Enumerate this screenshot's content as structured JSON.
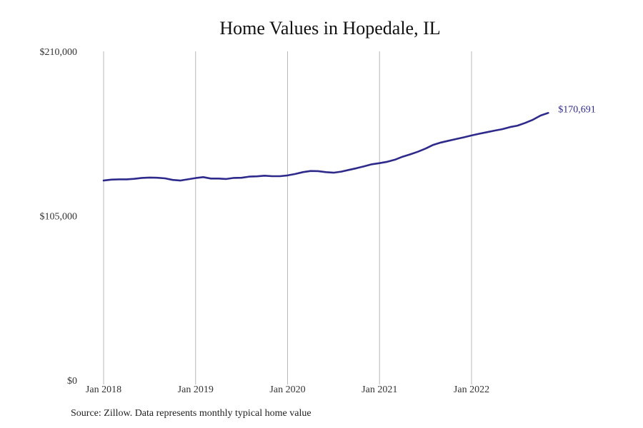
{
  "chart_data": {
    "type": "line",
    "title": "Home Values in Hopedale, IL",
    "xlabel": "",
    "ylabel": "",
    "ylim": [
      0,
      210000
    ],
    "y_ticks": [
      {
        "value": 0,
        "label": "$0"
      },
      {
        "value": 105000,
        "label": "$105,000"
      },
      {
        "value": 210000,
        "label": "$210,000"
      }
    ],
    "x_ticks": [
      {
        "date": "2018-01",
        "label": "Jan 2018"
      },
      {
        "date": "2019-01",
        "label": "Jan 2019"
      },
      {
        "date": "2020-01",
        "label": "Jan 2020"
      },
      {
        "date": "2021-01",
        "label": "Jan 2021"
      },
      {
        "date": "2022-01",
        "label": "Jan 2022"
      }
    ],
    "grid": "vertical",
    "series": [
      {
        "color": "#2e2a8c",
        "end_label": "$170,691",
        "x": [
          "2018-01",
          "2018-02",
          "2018-03",
          "2018-04",
          "2018-05",
          "2018-06",
          "2018-07",
          "2018-08",
          "2018-09",
          "2018-10",
          "2018-11",
          "2018-12",
          "2019-01",
          "2019-02",
          "2019-03",
          "2019-04",
          "2019-05",
          "2019-06",
          "2019-07",
          "2019-08",
          "2019-09",
          "2019-10",
          "2019-11",
          "2019-12",
          "2020-01",
          "2020-02",
          "2020-03",
          "2020-04",
          "2020-05",
          "2020-06",
          "2020-07",
          "2020-08",
          "2020-09",
          "2020-10",
          "2020-11",
          "2020-12",
          "2021-01",
          "2021-02",
          "2021-03",
          "2021-04",
          "2021-05",
          "2021-06",
          "2021-07",
          "2021-08",
          "2021-09",
          "2021-10",
          "2021-11",
          "2021-12",
          "2022-01",
          "2022-02",
          "2022-03",
          "2022-04",
          "2022-05",
          "2022-06",
          "2022-07",
          "2022-08",
          "2022-09",
          "2022-10",
          "2022-11",
          "2022-12"
        ],
        "values": [
          127500,
          128100,
          128300,
          128300,
          128600,
          129200,
          129400,
          129300,
          128900,
          127900,
          127500,
          128300,
          129100,
          129700,
          128800,
          128800,
          128500,
          129200,
          129300,
          130000,
          130200,
          130600,
          130300,
          130300,
          130800,
          131700,
          132900,
          133600,
          133500,
          132900,
          132500,
          133200,
          134300,
          135400,
          136600,
          137900,
          138600,
          139500,
          140800,
          142700,
          144200,
          145900,
          147900,
          150300,
          151800,
          152900,
          154000,
          155100,
          156300,
          157400,
          158400,
          159400,
          160300,
          161600,
          162600,
          164300,
          166300,
          169000,
          170691,
          170691
        ]
      }
    ]
  },
  "footer": {
    "source": "Source: Zillow. Data represents monthly typical home value"
  }
}
